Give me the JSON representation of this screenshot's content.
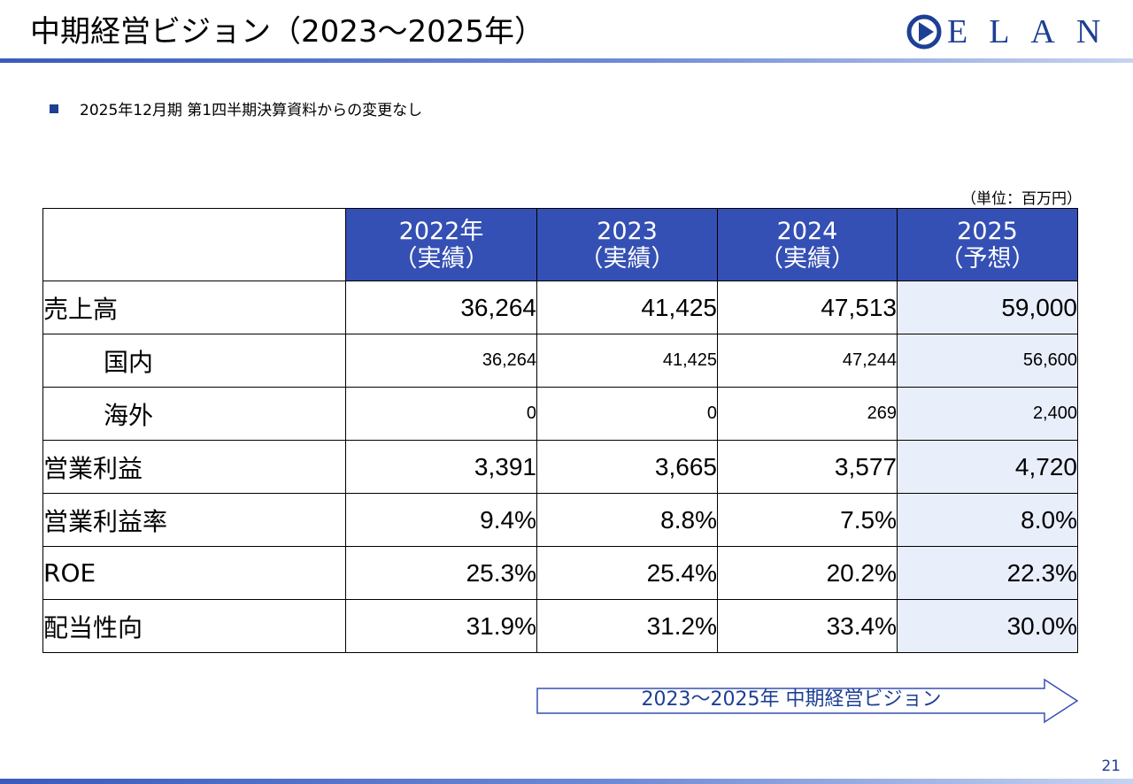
{
  "header": {
    "title": "中期経営ビジョン（2023～2025年）",
    "logo_text": "ELAN",
    "accent_color": "#3550b4",
    "logo_color": "#1d3f95"
  },
  "note": "2025年12月期 第1四半期決算資料からの変更なし",
  "unit": "（単位：百万円）",
  "table": {
    "columns": [
      {
        "year": "2022年",
        "kind": "（実績）"
      },
      {
        "year": "2023",
        "kind": "（実績）"
      },
      {
        "year": "2024",
        "kind": "（実績）"
      },
      {
        "year": "2025",
        "kind": "（予想）"
      }
    ],
    "rows": [
      {
        "label": "売上高",
        "values": [
          "36,264",
          "41,425",
          "47,513",
          "59,000"
        ]
      },
      {
        "label": "国内",
        "values": [
          "36,264",
          "41,425",
          "47,244",
          "56,600"
        ]
      },
      {
        "label": "海外",
        "values": [
          "0",
          "0",
          "269",
          "2,400"
        ]
      },
      {
        "label": "営業利益",
        "values": [
          "3,391",
          "3,665",
          "3,577",
          "4,720"
        ]
      },
      {
        "label": "営業利益率",
        "values": [
          "9.4%",
          "8.8%",
          "7.5%",
          "8.0%"
        ]
      },
      {
        "label": "ROE",
        "values": [
          "25.3%",
          "25.4%",
          "20.2%",
          "22.3%"
        ]
      },
      {
        "label": "配当性向",
        "values": [
          "31.9%",
          "31.2%",
          "33.4%",
          "30.0%"
        ]
      }
    ]
  },
  "arrow_label": "2023～2025年 中期経営ビジョン",
  "page_number": "21"
}
